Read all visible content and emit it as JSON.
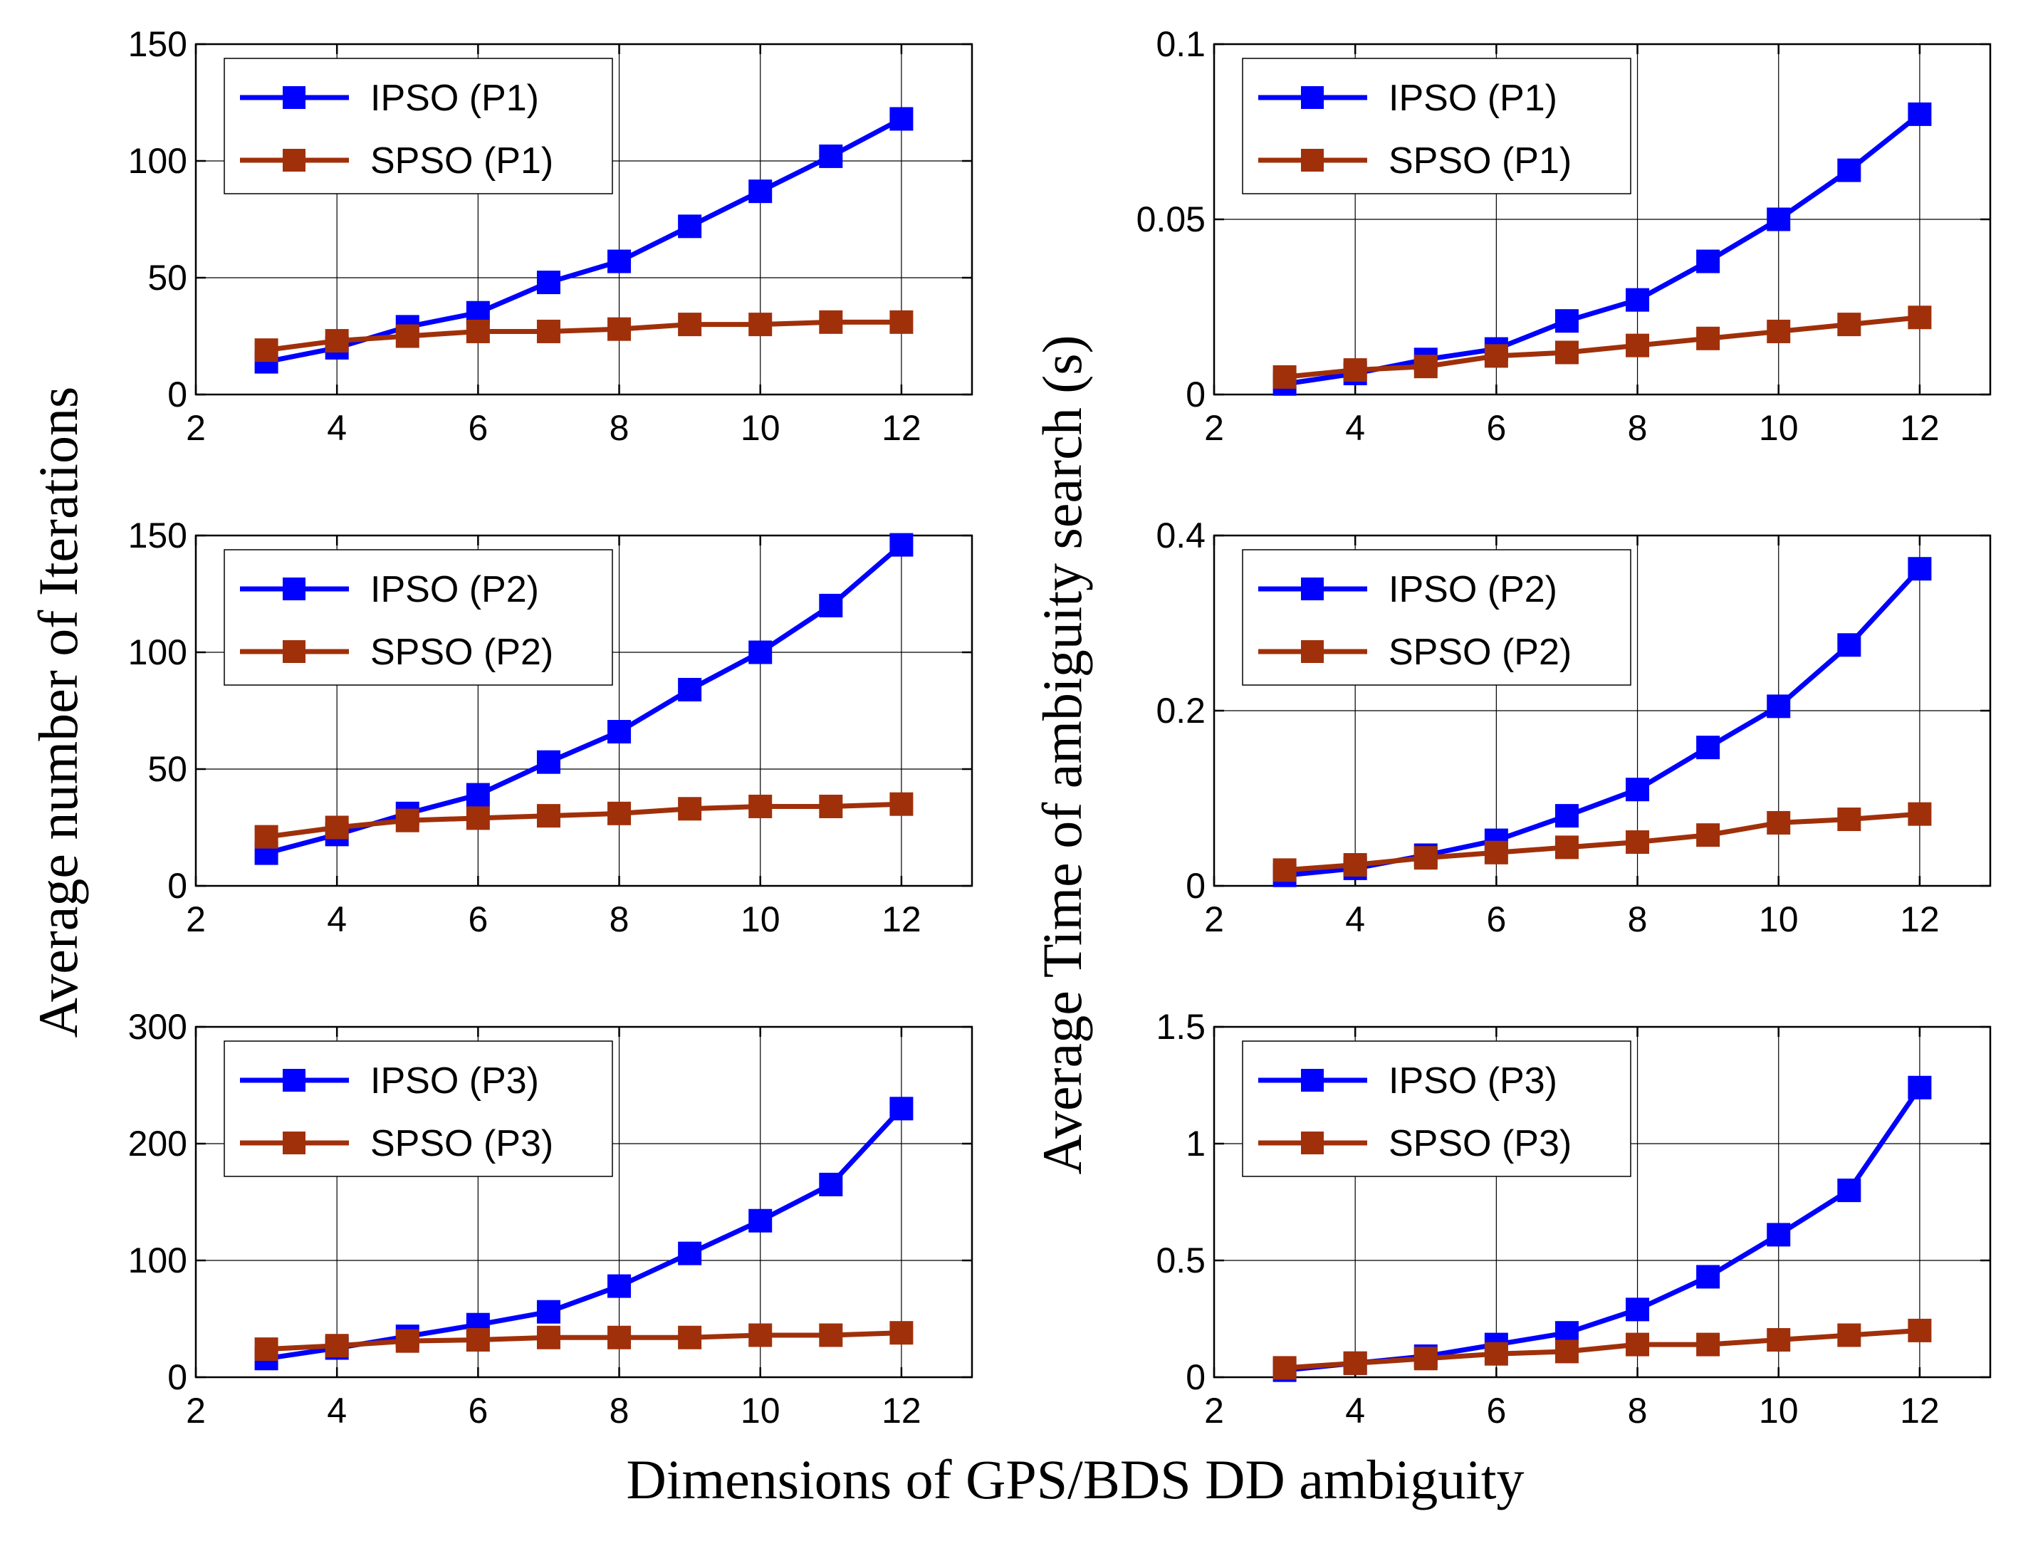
{
  "figure": {
    "ylabel_left": "Average number of Iterations",
    "ylabel_right": "Average Time of ambiguity search (s)",
    "xlabel": "Dimensions of GPS/BDS DD ambiguity"
  },
  "colors": {
    "ipso": "#0000ff",
    "spso": "#a0300a",
    "grid": "#000000",
    "axis": "#000000"
  },
  "chart_data": [
    {
      "type": "line",
      "panel": "top-left",
      "xlim": [
        2,
        13
      ],
      "ylim": [
        0,
        150
      ],
      "xticks": [
        2,
        4,
        6,
        8,
        10,
        12
      ],
      "yticks": [
        0,
        50,
        100,
        150
      ],
      "xtick_labels": [
        "2",
        "4",
        "6",
        "8",
        "10",
        "12"
      ],
      "ytick_labels": [
        "0",
        "50",
        "100",
        "150"
      ],
      "legend_position": "top-left",
      "x": [
        3,
        4,
        5,
        6,
        7,
        8,
        9,
        10,
        11,
        12
      ],
      "series": [
        {
          "name": "IPSO (P1)",
          "color_key": "ipso",
          "values": [
            14,
            20,
            29,
            35,
            48,
            57,
            72,
            87,
            102,
            118
          ]
        },
        {
          "name": "SPSO (P1)",
          "color_key": "spso",
          "values": [
            19,
            23,
            25,
            27,
            27,
            28,
            30,
            30,
            31,
            31
          ]
        }
      ]
    },
    {
      "type": "line",
      "panel": "top-right",
      "xlim": [
        2,
        13
      ],
      "ylim": [
        0,
        0.1
      ],
      "xticks": [
        2,
        4,
        6,
        8,
        10,
        12
      ],
      "yticks": [
        0,
        0.05,
        0.1
      ],
      "xtick_labels": [
        "2",
        "4",
        "6",
        "8",
        "10",
        "12"
      ],
      "ytick_labels": [
        "0",
        "0.05",
        "0.1"
      ],
      "legend_position": "top-left",
      "x": [
        3,
        4,
        5,
        6,
        7,
        8,
        9,
        10,
        11,
        12
      ],
      "series": [
        {
          "name": "IPSO (P1)",
          "color_key": "ipso",
          "values": [
            0.003,
            0.006,
            0.01,
            0.013,
            0.021,
            0.027,
            0.038,
            0.05,
            0.064,
            0.08
          ]
        },
        {
          "name": "SPSO (P1)",
          "color_key": "spso",
          "values": [
            0.005,
            0.007,
            0.008,
            0.011,
            0.012,
            0.014,
            0.016,
            0.018,
            0.02,
            0.022
          ]
        }
      ]
    },
    {
      "type": "line",
      "panel": "middle-left",
      "xlim": [
        2,
        13
      ],
      "ylim": [
        0,
        150
      ],
      "xticks": [
        2,
        4,
        6,
        8,
        10,
        12
      ],
      "yticks": [
        0,
        50,
        100,
        150
      ],
      "xtick_labels": [
        "2",
        "4",
        "6",
        "8",
        "10",
        "12"
      ],
      "ytick_labels": [
        "0",
        "50",
        "100",
        "150"
      ],
      "legend_position": "top-left",
      "x": [
        3,
        4,
        5,
        6,
        7,
        8,
        9,
        10,
        11,
        12
      ],
      "series": [
        {
          "name": "IPSO (P2)",
          "color_key": "ipso",
          "values": [
            14,
            22,
            31,
            39,
            53,
            66,
            84,
            100,
            120,
            146
          ]
        },
        {
          "name": "SPSO (P2)",
          "color_key": "spso",
          "values": [
            21,
            25,
            28,
            29,
            30,
            31,
            33,
            34,
            34,
            35
          ]
        }
      ]
    },
    {
      "type": "line",
      "panel": "middle-right",
      "xlim": [
        2,
        13
      ],
      "ylim": [
        0,
        0.4
      ],
      "xticks": [
        2,
        4,
        6,
        8,
        10,
        12
      ],
      "yticks": [
        0,
        0.2,
        0.4
      ],
      "xtick_labels": [
        "2",
        "4",
        "6",
        "8",
        "10",
        "12"
      ],
      "ytick_labels": [
        "0",
        "0.2",
        "0.4"
      ],
      "legend_position": "top-left",
      "x": [
        3,
        4,
        5,
        6,
        7,
        8,
        9,
        10,
        11,
        12
      ],
      "series": [
        {
          "name": "IPSO (P2)",
          "color_key": "ipso",
          "values": [
            0.012,
            0.02,
            0.035,
            0.052,
            0.08,
            0.11,
            0.158,
            0.205,
            0.275,
            0.362
          ]
        },
        {
          "name": "SPSO (P2)",
          "color_key": "spso",
          "values": [
            0.018,
            0.024,
            0.032,
            0.038,
            0.044,
            0.05,
            0.058,
            0.072,
            0.076,
            0.082
          ]
        }
      ]
    },
    {
      "type": "line",
      "panel": "bottom-left",
      "xlim": [
        2,
        13
      ],
      "ylim": [
        0,
        300
      ],
      "xticks": [
        2,
        4,
        6,
        8,
        10,
        12
      ],
      "yticks": [
        0,
        100,
        200,
        300
      ],
      "xtick_labels": [
        "2",
        "4",
        "6",
        "8",
        "10",
        "12"
      ],
      "ytick_labels": [
        "0",
        "100",
        "200",
        "300"
      ],
      "legend_position": "top-left",
      "x": [
        3,
        4,
        5,
        6,
        7,
        8,
        9,
        10,
        11,
        12
      ],
      "series": [
        {
          "name": "IPSO (P3)",
          "color_key": "ipso",
          "values": [
            16,
            25,
            35,
            45,
            56,
            78,
            106,
            134,
            165,
            230
          ]
        },
        {
          "name": "SPSO (P3)",
          "color_key": "spso",
          "values": [
            24,
            27,
            31,
            32,
            34,
            34,
            34,
            36,
            36,
            38
          ]
        }
      ]
    },
    {
      "type": "line",
      "panel": "bottom-right",
      "xlim": [
        2,
        13
      ],
      "ylim": [
        0,
        1.5
      ],
      "xticks": [
        2,
        4,
        6,
        8,
        10,
        12
      ],
      "yticks": [
        0,
        0.5,
        1,
        1.5
      ],
      "xtick_labels": [
        "2",
        "4",
        "6",
        "8",
        "10",
        "12"
      ],
      "ytick_labels": [
        "0",
        "0.5",
        "1",
        "1.5"
      ],
      "legend_position": "top-left",
      "x": [
        3,
        4,
        5,
        6,
        7,
        8,
        9,
        10,
        11,
        12
      ],
      "series": [
        {
          "name": "IPSO (P3)",
          "color_key": "ipso",
          "values": [
            0.03,
            0.06,
            0.09,
            0.14,
            0.19,
            0.29,
            0.43,
            0.61,
            0.8,
            1.24
          ]
        },
        {
          "name": "SPSO (P3)",
          "color_key": "spso",
          "values": [
            0.04,
            0.06,
            0.08,
            0.1,
            0.11,
            0.14,
            0.14,
            0.16,
            0.18,
            0.2
          ]
        }
      ]
    }
  ]
}
